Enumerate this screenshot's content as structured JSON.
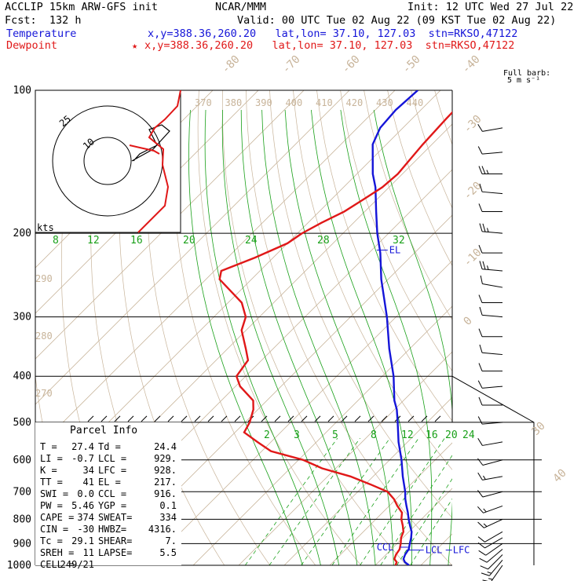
{
  "header": {
    "model": "ACCLIP 15km ARW-GFS init",
    "org": "NCAR/MMM",
    "init": "Init: 12 UTC Wed 27 Jul 22",
    "fcst": "Fcst:  132 h",
    "valid": "Valid: 00 UTC Tue 02 Aug 22 (09 KST Tue 02 Aug 22)",
    "temp_label": "Temperature",
    "temp_info": "x,y=388.36,260.20   lat,lon= 37.10, 127.03  stn=RKSO,47122",
    "dew_label": "Dewpoint",
    "dew_star": "★",
    "dew_info": "x,y=388.36,260.20   lat,lon= 37.10, 127.03  stn=RKSO,47122"
  },
  "colors": {
    "temperature": "#1515d8",
    "dewpoint": "#e01818",
    "isotherm": "#c8b49a",
    "mixing_ratio": "#19a019",
    "isobar": "#000000",
    "theta_label": "#c8b49a"
  },
  "barb_legend": {
    "line1": "Full barb:",
    "line2": "5 m s⁻¹"
  },
  "hodograph": {
    "units": "kts",
    "ring_labels": [
      "10",
      "25"
    ]
  },
  "parcel_info": {
    "title": "Parcel Info",
    "rows": [
      [
        "T   =",
        "27.4",
        "Td =",
        "24.4"
      ],
      [
        "LI  =",
        "-0.7",
        "LCL =",
        "929."
      ],
      [
        "K   =",
        "34",
        "LFC =",
        "928."
      ],
      [
        "TT  =",
        "41",
        "EL  =",
        "217."
      ],
      [
        "SWI =",
        "0.0",
        "CCL =",
        "916."
      ],
      [
        "PW  =",
        "5.46",
        "YGP =",
        "0.1"
      ],
      [
        "CAPE =",
        "374",
        "SWEAT=",
        "334"
      ],
      [
        "CIN =",
        "-30",
        "HWBZ=",
        "4316."
      ],
      [
        "Tc  =",
        "29.1",
        "SHEAR=",
        "7."
      ],
      [
        "SREH =",
        "11",
        "LAPSE=",
        "5.5"
      ],
      [
        "CELL =",
        "249/21",
        "",
        ""
      ]
    ]
  },
  "levels": {
    "el": "EL",
    "ccl": "CCL",
    "lcl": "LCL",
    "lfc": "LFC"
  },
  "chart_data": {
    "type": "line",
    "title": "",
    "y_ticks": [
      100,
      200,
      300,
      400,
      500,
      600,
      700,
      800,
      900,
      1000
    ],
    "mixing_ratio_upper": [
      "8",
      "12",
      "16",
      "20",
      "24",
      "28",
      "32"
    ],
    "mixing_ratio_lower": [
      "2",
      "3",
      "5",
      "8",
      "12",
      "16",
      "20",
      "24"
    ],
    "isotherm_labels": [
      "-80",
      "-70",
      "-60",
      "-50",
      "-40",
      "-30",
      "-20",
      "-10",
      "0",
      "30",
      "40"
    ],
    "theta_labels_top": [
      "370",
      "380",
      "390",
      "400",
      "410",
      "420",
      "430",
      "440"
    ],
    "theta_labels_left": [
      "290",
      "280",
      "270"
    ],
    "series": [
      {
        "name": "Temperature",
        "points": [
          [
            1000,
            27.4
          ],
          [
            985,
            25.8
          ],
          [
            970,
            24.8
          ],
          [
            950,
            24.2
          ],
          [
            925,
            23.8
          ],
          [
            900,
            22.8
          ],
          [
            875,
            21.8
          ],
          [
            850,
            20.6
          ],
          [
            825,
            18.9
          ],
          [
            800,
            17.2
          ],
          [
            775,
            15.6
          ],
          [
            750,
            13.8
          ],
          [
            725,
            12.0
          ],
          [
            700,
            10.4
          ],
          [
            650,
            6.5
          ],
          [
            600,
            2.6
          ],
          [
            550,
            -2.0
          ],
          [
            500,
            -6.5
          ],
          [
            470,
            -9.5
          ],
          [
            450,
            -12.0
          ],
          [
            400,
            -17.5
          ],
          [
            350,
            -24.5
          ],
          [
            300,
            -32.0
          ],
          [
            250,
            -41.5
          ],
          [
            220,
            -47.5
          ],
          [
            200,
            -52.5
          ],
          [
            180,
            -57.5
          ],
          [
            160,
            -63.0
          ],
          [
            150,
            -66.5
          ],
          [
            130,
            -73.0
          ],
          [
            120,
            -75.0
          ],
          [
            110,
            -75.5
          ],
          [
            100,
            -75.0
          ]
        ]
      },
      {
        "name": "Dewpoint",
        "points": [
          [
            1000,
            24.4
          ],
          [
            985,
            24.0
          ],
          [
            970,
            22.8
          ],
          [
            950,
            22.2
          ],
          [
            925,
            21.8
          ],
          [
            900,
            20.8
          ],
          [
            875,
            19.6
          ],
          [
            850,
            18.8
          ],
          [
            825,
            17.3
          ],
          [
            800,
            15.6
          ],
          [
            775,
            14.3
          ],
          [
            750,
            11.8
          ],
          [
            725,
            9.5
          ],
          [
            700,
            6.5
          ],
          [
            675,
            1.0
          ],
          [
            650,
            -5.0
          ],
          [
            625,
            -13.0
          ],
          [
            600,
            -19.0
          ],
          [
            575,
            -28.0
          ],
          [
            550,
            -33.0
          ],
          [
            525,
            -38.0
          ],
          [
            500,
            -39.0
          ],
          [
            470,
            -41.0
          ],
          [
            450,
            -43.0
          ],
          [
            420,
            -49.0
          ],
          [
            400,
            -52.0
          ],
          [
            370,
            -53.0
          ],
          [
            350,
            -56.0
          ],
          [
            320,
            -61.0
          ],
          [
            300,
            -63.0
          ],
          [
            280,
            -67.0
          ],
          [
            250,
            -77.0
          ],
          [
            240,
            -78.5
          ],
          [
            225,
            -74.0
          ],
          [
            210,
            -70.0
          ],
          [
            200,
            -69.0
          ],
          [
            190,
            -67.0
          ],
          [
            180,
            -64.5
          ],
          [
            170,
            -63.0
          ],
          [
            160,
            -61.5
          ],
          [
            150,
            -61.0
          ],
          [
            140,
            -61.5
          ],
          [
            130,
            -62.0
          ],
          [
            115,
            -62.5
          ],
          [
            100,
            -62.8
          ]
        ]
      }
    ],
    "wind_barbs": [
      {
        "p": 120,
        "dir": 260,
        "kt": 12
      },
      {
        "p": 135,
        "dir": 265,
        "kt": 14
      },
      {
        "p": 150,
        "dir": 270,
        "kt": 16
      },
      {
        "p": 165,
        "dir": 275,
        "kt": 14
      },
      {
        "p": 180,
        "dir": 270,
        "kt": 12
      },
      {
        "p": 200,
        "dir": 275,
        "kt": 16
      },
      {
        "p": 220,
        "dir": 270,
        "kt": 14
      },
      {
        "p": 240,
        "dir": 275,
        "kt": 16
      },
      {
        "p": 260,
        "dir": 280,
        "kt": 12
      },
      {
        "p": 280,
        "dir": 270,
        "kt": 14
      },
      {
        "p": 300,
        "dir": 275,
        "kt": 12
      },
      {
        "p": 330,
        "dir": 270,
        "kt": 14
      },
      {
        "p": 360,
        "dir": 275,
        "kt": 12
      },
      {
        "p": 390,
        "dir": 270,
        "kt": 14
      },
      {
        "p": 420,
        "dir": 265,
        "kt": 12
      },
      {
        "p": 460,
        "dir": 270,
        "kt": 10
      },
      {
        "p": 500,
        "dir": 265,
        "kt": 12
      },
      {
        "p": 550,
        "dir": 260,
        "kt": 10
      },
      {
        "p": 600,
        "dir": 255,
        "kt": 10
      },
      {
        "p": 650,
        "dir": 260,
        "kt": 8
      },
      {
        "p": 700,
        "dir": 255,
        "kt": 10
      },
      {
        "p": 750,
        "dir": 250,
        "kt": 8
      },
      {
        "p": 800,
        "dir": 245,
        "kt": 8
      },
      {
        "p": 850,
        "dir": 240,
        "kt": 10
      },
      {
        "p": 875,
        "dir": 240,
        "kt": 12
      },
      {
        "p": 900,
        "dir": 235,
        "kt": 10
      },
      {
        "p": 925,
        "dir": 230,
        "kt": 12
      },
      {
        "p": 950,
        "dir": 225,
        "kt": 10
      },
      {
        "p": 975,
        "dir": 220,
        "kt": 8
      },
      {
        "p": 1000,
        "dir": 215,
        "kt": 6
      }
    ]
  }
}
